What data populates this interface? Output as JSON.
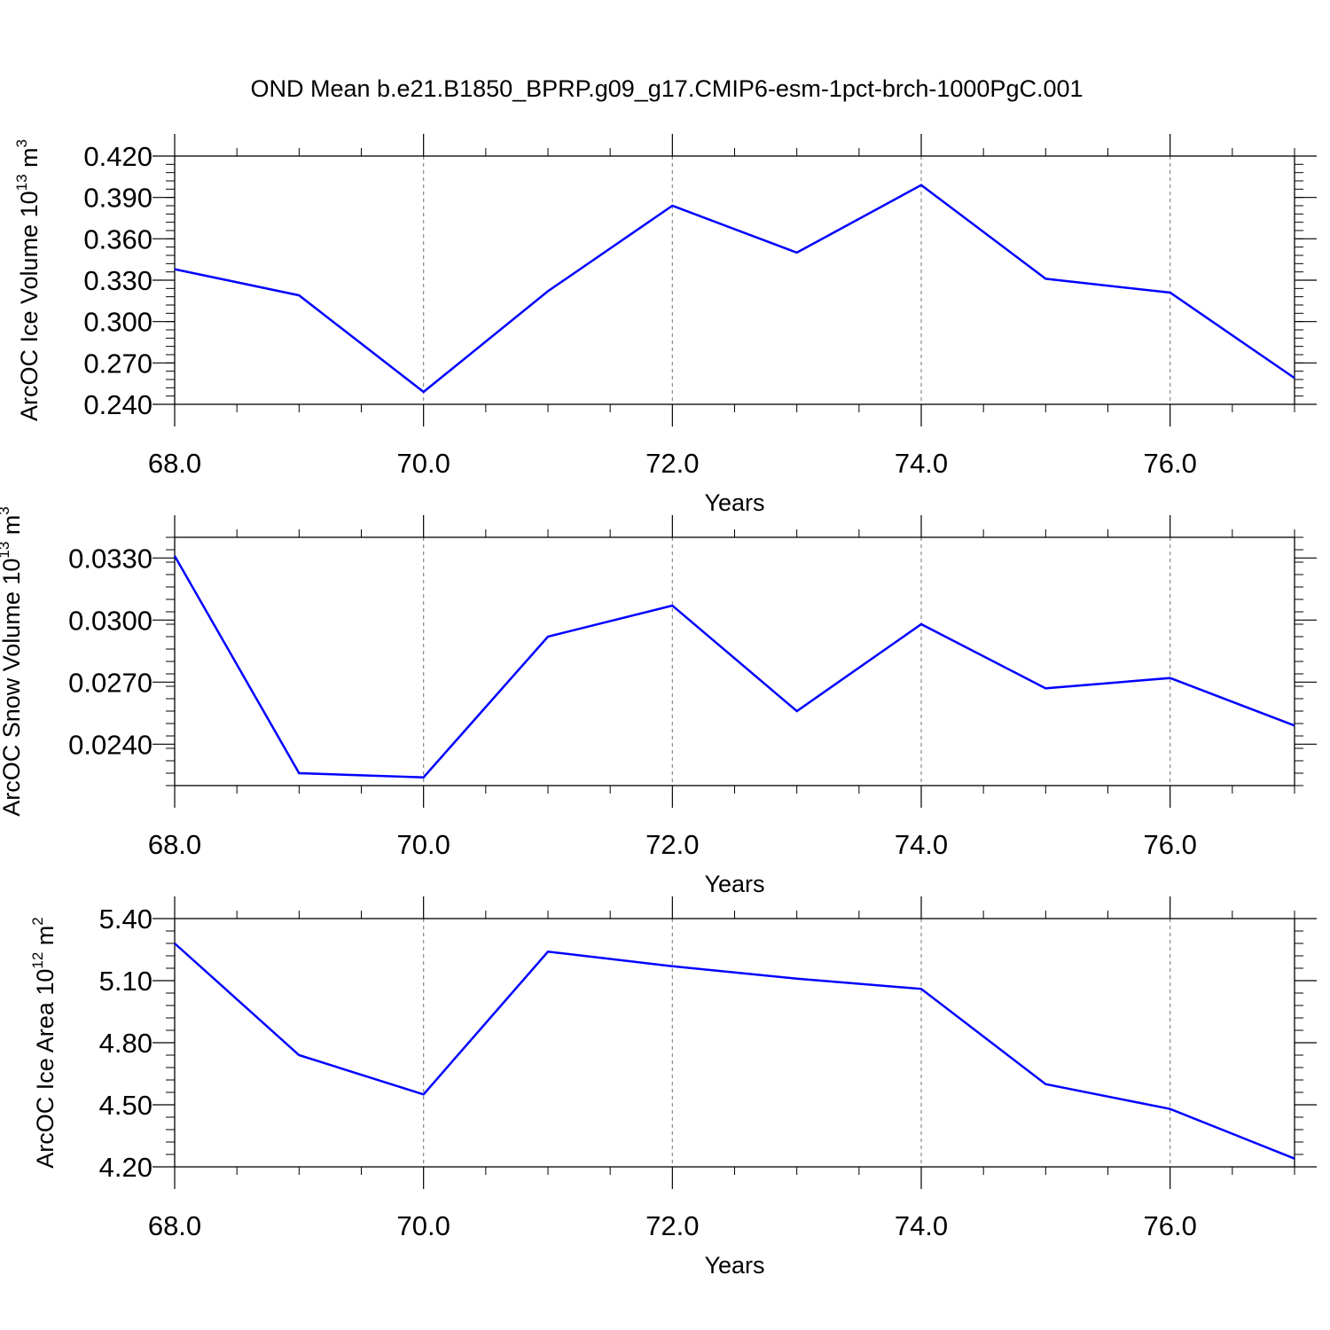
{
  "title": "OND Mean b.e21.B1850_BPRP.g09_g17.CMIP6-esm-1pct-brch-1000PgC.001",
  "chart_data": [
    {
      "type": "line",
      "xlabel": "Years",
      "ylabel_main": "ArcOC Ice Volume 10",
      "ylabel_exp": "13",
      "ylabel_unit": " m",
      "ylabel_unit_exp": "3",
      "xlim": [
        68,
        77
      ],
      "ylim": [
        0.24,
        0.42
      ],
      "xticks": [
        68,
        70,
        72,
        74,
        76
      ],
      "xtick_labels": [
        "68.0",
        "70.0",
        "72.0",
        "74.0",
        "76.0"
      ],
      "yticks": [
        0.24,
        0.27,
        0.3,
        0.33,
        0.36,
        0.39,
        0.42
      ],
      "ytick_labels": [
        "0.240",
        "0.270",
        "0.300",
        "0.330",
        "0.360",
        "0.390",
        "0.420"
      ],
      "y_minor_step": 0.006,
      "grid": "vertical-dashed",
      "color": "#0000ff",
      "x": [
        68,
        69,
        70,
        71,
        72,
        73,
        74,
        75,
        76,
        77
      ],
      "y": [
        0.338,
        0.319,
        0.249,
        0.322,
        0.384,
        0.35,
        0.399,
        0.331,
        0.321,
        0.259
      ]
    },
    {
      "type": "line",
      "xlabel": "Years",
      "ylabel_main": "ArcOC Snow Volume 10",
      "ylabel_exp": "13",
      "ylabel_unit": " m",
      "ylabel_unit_exp": "3",
      "xlim": [
        68,
        77
      ],
      "ylim": [
        0.022,
        0.034
      ],
      "xticks": [
        68,
        70,
        72,
        74,
        76
      ],
      "xtick_labels": [
        "68.0",
        "70.0",
        "72.0",
        "74.0",
        "76.0"
      ],
      "yticks": [
        0.024,
        0.027,
        0.03,
        0.033
      ],
      "ytick_labels": [
        "0.0240",
        "0.0270",
        "0.0300",
        "0.0330"
      ],
      "y_minor_step": 0.0006,
      "grid": "vertical-dashed",
      "color": "#0000ff",
      "x": [
        68,
        69,
        70,
        71,
        72,
        73,
        74,
        75,
        76,
        77
      ],
      "y": [
        0.0331,
        0.0226,
        0.0224,
        0.0292,
        0.0307,
        0.0256,
        0.0298,
        0.0267,
        0.0272,
        0.0249
      ]
    },
    {
      "type": "line",
      "xlabel": "Years",
      "ylabel_main": "ArcOC Ice Area 10",
      "ylabel_exp": "12",
      "ylabel_unit": " m",
      "ylabel_unit_exp": "2",
      "xlim": [
        68,
        77
      ],
      "ylim": [
        4.2,
        5.4
      ],
      "xticks": [
        68,
        70,
        72,
        74,
        76
      ],
      "xtick_labels": [
        "68.0",
        "70.0",
        "72.0",
        "74.0",
        "76.0"
      ],
      "yticks": [
        4.2,
        4.5,
        4.8,
        5.1,
        5.4
      ],
      "ytick_labels": [
        "4.20",
        "4.50",
        "4.80",
        "5.10",
        "5.40"
      ],
      "y_minor_step": 0.06,
      "grid": "vertical-dashed",
      "color": "#0000ff",
      "x": [
        68,
        69,
        70,
        71,
        72,
        73,
        74,
        75,
        76,
        77
      ],
      "y": [
        5.28,
        4.74,
        4.55,
        5.24,
        5.17,
        5.11,
        5.06,
        4.6,
        4.48,
        4.24
      ]
    }
  ]
}
